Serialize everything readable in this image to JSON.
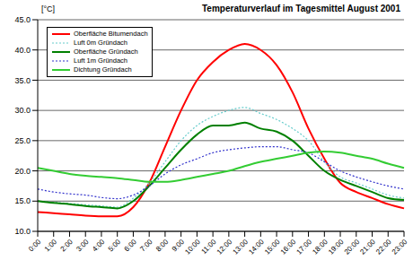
{
  "chart_data": {
    "type": "line",
    "title": "Temperaturverlauf im Tagesmittel August 2001",
    "y_label": "[°C]",
    "categories": [
      "0:00",
      "1:00",
      "2:00",
      "3:00",
      "4:00",
      "5:00",
      "6:00",
      "7:00",
      "8:00",
      "9:00",
      "10:00",
      "11:00",
      "12:00",
      "13:00",
      "14:00",
      "15:00",
      "16:00",
      "17:00",
      "18:00",
      "19:00",
      "20:00",
      "21:00",
      "22:00",
      "23:00"
    ],
    "series": [
      {
        "name": "Oberfläche Bitumendach",
        "color": "#ff0000",
        "line_style": "solid",
        "values": [
          13.2,
          13.0,
          12.8,
          12.6,
          12.5,
          12.5,
          14.0,
          18.0,
          24.0,
          30.0,
          35.0,
          38.0,
          40.0,
          41.0,
          40.0,
          37.5,
          33.0,
          27.0,
          22.0,
          18.0,
          16.5,
          15.5,
          14.5,
          13.8
        ]
      },
      {
        "name": "Luft 0m Gründach",
        "color": "#66cccc",
        "line_style": "dotted",
        "values": [
          15.0,
          14.8,
          14.6,
          14.4,
          14.2,
          14.0,
          15.5,
          18.0,
          21.5,
          25.0,
          27.5,
          29.0,
          30.0,
          30.5,
          29.5,
          28.5,
          27.0,
          25.0,
          21.5,
          19.0,
          18.0,
          17.0,
          16.0,
          15.5
        ]
      },
      {
        "name": "Oberfläche Gründach",
        "color": "#008000",
        "line_style": "solid",
        "values": [
          15.0,
          14.7,
          14.5,
          14.2,
          14.0,
          13.8,
          15.0,
          17.5,
          20.5,
          23.5,
          26.0,
          27.5,
          27.5,
          28.0,
          27.0,
          26.5,
          25.0,
          22.5,
          20.0,
          18.5,
          17.5,
          16.5,
          15.5,
          15.2
        ]
      },
      {
        "name": "Luft 1m Gründach",
        "color": "#3333cc",
        "line_style": "dotted",
        "values": [
          17.0,
          16.5,
          16.2,
          16.0,
          15.6,
          15.4,
          16.0,
          17.5,
          19.5,
          21.0,
          22.0,
          23.0,
          23.5,
          23.8,
          24.0,
          24.0,
          23.5,
          23.0,
          21.5,
          20.0,
          19.0,
          18.2,
          17.5,
          17.0
        ]
      },
      {
        "name": "Dichtung Gründach",
        "color": "#33cc33",
        "line_style": "solid",
        "values": [
          20.5,
          20.0,
          19.5,
          19.2,
          19.0,
          18.8,
          18.5,
          18.2,
          18.2,
          18.5,
          19.0,
          19.5,
          20.0,
          20.8,
          21.5,
          22.0,
          22.5,
          23.0,
          23.2,
          23.0,
          22.5,
          22.0,
          21.2,
          20.5
        ]
      }
    ],
    "ylim": [
      10,
      45
    ],
    "yticks": [
      {
        "value": 10,
        "label": "10.0"
      },
      {
        "value": 15,
        "label": "15.0"
      },
      {
        "value": 20,
        "label": "20.0"
      },
      {
        "value": 25,
        "label": "25.0"
      },
      {
        "value": 30,
        "label": "30.0"
      },
      {
        "value": 35,
        "label": "35.0"
      },
      {
        "value": 40,
        "label": "40.0"
      },
      {
        "value": 45,
        "label": "45.0"
      }
    ],
    "grid": true,
    "legend": "upper left"
  }
}
